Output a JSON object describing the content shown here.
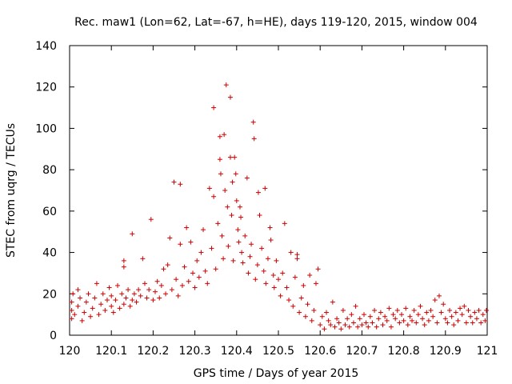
{
  "chart_data": {
    "type": "scatter",
    "title": "Rec. maw1 (Lon=62, Lat=-67, h=HE), days 119-120, 2015, window 004",
    "xlabel": "GPS time / Days of year 2015",
    "ylabel": "STEC from uqrg / TECUs",
    "xlim": [
      120,
      121
    ],
    "ylim": [
      0,
      140
    ],
    "xticks": [
      120,
      120.1,
      120.2,
      120.3,
      120.4,
      120.5,
      120.6,
      120.7,
      120.8,
      120.9,
      121
    ],
    "xtick_labels": [
      "120",
      "120.1",
      "120.2",
      "120.3",
      "120.4",
      "120.5",
      "120.6",
      "120.7",
      "120.8",
      "120.9",
      "121"
    ],
    "yticks": [
      0,
      20,
      40,
      60,
      80,
      100,
      120,
      140
    ],
    "ytick_labels": [
      "0",
      "20",
      "40",
      "60",
      "80",
      "100",
      "120",
      "140"
    ],
    "grid": false,
    "legend": false,
    "marker_color": "#cc0000",
    "points": [
      [
        120.005,
        8
      ],
      [
        120.005,
        12
      ],
      [
        120.005,
        16
      ],
      [
        120.008,
        20
      ],
      [
        120.012,
        10
      ],
      [
        120.02,
        14
      ],
      [
        120.02,
        22
      ],
      [
        120.025,
        18
      ],
      [
        120.03,
        7
      ],
      [
        120.035,
        11
      ],
      [
        120.04,
        16
      ],
      [
        120.045,
        20
      ],
      [
        120.05,
        9
      ],
      [
        120.055,
        13
      ],
      [
        120.06,
        18
      ],
      [
        120.065,
        25
      ],
      [
        120.07,
        10
      ],
      [
        120.075,
        15
      ],
      [
        120.08,
        20
      ],
      [
        120.085,
        12
      ],
      [
        120.09,
        17
      ],
      [
        120.095,
        23
      ],
      [
        120.1,
        14
      ],
      [
        120.1,
        19
      ],
      [
        120.105,
        11
      ],
      [
        120.11,
        17
      ],
      [
        120.115,
        24
      ],
      [
        120.12,
        13
      ],
      [
        120.125,
        20
      ],
      [
        120.13,
        15
      ],
      [
        120.13,
        33
      ],
      [
        120.13,
        36
      ],
      [
        120.135,
        18
      ],
      [
        120.14,
        22
      ],
      [
        120.145,
        14
      ],
      [
        120.15,
        17
      ],
      [
        120.15,
        49
      ],
      [
        120.155,
        20
      ],
      [
        120.16,
        16
      ],
      [
        120.165,
        22
      ],
      [
        120.17,
        19
      ],
      [
        120.175,
        37
      ],
      [
        120.18,
        25
      ],
      [
        120.185,
        18
      ],
      [
        120.19,
        22
      ],
      [
        120.195,
        56
      ],
      [
        120.2,
        17
      ],
      [
        120.205,
        21
      ],
      [
        120.21,
        26
      ],
      [
        120.215,
        18
      ],
      [
        120.22,
        24
      ],
      [
        120.225,
        32
      ],
      [
        120.23,
        20
      ],
      [
        120.235,
        34
      ],
      [
        120.24,
        47
      ],
      [
        120.245,
        22
      ],
      [
        120.25,
        74
      ],
      [
        120.255,
        27
      ],
      [
        120.26,
        19
      ],
      [
        120.265,
        73
      ],
      [
        120.265,
        44
      ],
      [
        120.27,
        24
      ],
      [
        120.275,
        33
      ],
      [
        120.28,
        52
      ],
      [
        120.285,
        26
      ],
      [
        120.29,
        45
      ],
      [
        120.295,
        30
      ],
      [
        120.3,
        23
      ],
      [
        120.305,
        36
      ],
      [
        120.31,
        28
      ],
      [
        120.315,
        40
      ],
      [
        120.32,
        51
      ],
      [
        120.325,
        31
      ],
      [
        120.33,
        25
      ],
      [
        120.335,
        71
      ],
      [
        120.34,
        42
      ],
      [
        120.345,
        67
      ],
      [
        120.345,
        110
      ],
      [
        120.35,
        32
      ],
      [
        120.355,
        54
      ],
      [
        120.36,
        96
      ],
      [
        120.36,
        85
      ],
      [
        120.362,
        78
      ],
      [
        120.365,
        48
      ],
      [
        120.368,
        37
      ],
      [
        120.37,
        97
      ],
      [
        120.372,
        70
      ],
      [
        120.375,
        121
      ],
      [
        120.378,
        62
      ],
      [
        120.38,
        43
      ],
      [
        120.385,
        115
      ],
      [
        120.385,
        86
      ],
      [
        120.388,
        58
      ],
      [
        120.39,
        74
      ],
      [
        120.392,
        36
      ],
      [
        120.395,
        86
      ],
      [
        120.398,
        78
      ],
      [
        120.4,
        65
      ],
      [
        120.403,
        51
      ],
      [
        120.405,
        45
      ],
      [
        120.408,
        62
      ],
      [
        120.41,
        57
      ],
      [
        120.412,
        40
      ],
      [
        120.415,
        35
      ],
      [
        120.42,
        48
      ],
      [
        120.425,
        76
      ],
      [
        120.428,
        30
      ],
      [
        120.432,
        38
      ],
      [
        120.435,
        44
      ],
      [
        120.44,
        103
      ],
      [
        120.442,
        95
      ],
      [
        120.445,
        27
      ],
      [
        120.45,
        34
      ],
      [
        120.452,
        69
      ],
      [
        120.455,
        58
      ],
      [
        120.46,
        42
      ],
      [
        120.465,
        31
      ],
      [
        120.468,
        71
      ],
      [
        120.47,
        25
      ],
      [
        120.475,
        37
      ],
      [
        120.48,
        52
      ],
      [
        120.482,
        46
      ],
      [
        120.488,
        29
      ],
      [
        120.49,
        23
      ],
      [
        120.495,
        36
      ],
      [
        120.5,
        27
      ],
      [
        120.505,
        19
      ],
      [
        120.51,
        30
      ],
      [
        120.515,
        54
      ],
      [
        120.52,
        23
      ],
      [
        120.525,
        17
      ],
      [
        120.53,
        40
      ],
      [
        120.535,
        14
      ],
      [
        120.54,
        28
      ],
      [
        120.545,
        37
      ],
      [
        120.545,
        39
      ],
      [
        120.55,
        11
      ],
      [
        120.555,
        18
      ],
      [
        120.56,
        24
      ],
      [
        120.565,
        9
      ],
      [
        120.57,
        15
      ],
      [
        120.575,
        29
      ],
      [
        120.58,
        7
      ],
      [
        120.585,
        12
      ],
      [
        120.59,
        25
      ],
      [
        120.595,
        32
      ],
      [
        120.6,
        5
      ],
      [
        120.605,
        9
      ],
      [
        120.61,
        3
      ],
      [
        120.615,
        11
      ],
      [
        120.62,
        7
      ],
      [
        120.625,
        5
      ],
      [
        120.63,
        16
      ],
      [
        120.635,
        4
      ],
      [
        120.64,
        8
      ],
      [
        120.645,
        6
      ],
      [
        120.65,
        3
      ],
      [
        120.655,
        12
      ],
      [
        120.66,
        5
      ],
      [
        120.665,
        8
      ],
      [
        120.67,
        4
      ],
      [
        120.675,
        10
      ],
      [
        120.68,
        6
      ],
      [
        120.685,
        14
      ],
      [
        120.69,
        4
      ],
      [
        120.695,
        8
      ],
      [
        120.7,
        5
      ],
      [
        120.705,
        10
      ],
      [
        120.71,
        6
      ],
      [
        120.715,
        4
      ],
      [
        120.72,
        9
      ],
      [
        120.725,
        6
      ],
      [
        120.73,
        12
      ],
      [
        120.735,
        4
      ],
      [
        120.74,
        8
      ],
      [
        120.745,
        11
      ],
      [
        120.75,
        5
      ],
      [
        120.755,
        9
      ],
      [
        120.76,
        7
      ],
      [
        120.765,
        13
      ],
      [
        120.77,
        4
      ],
      [
        120.775,
        10
      ],
      [
        120.78,
        8
      ],
      [
        120.785,
        12
      ],
      [
        120.79,
        6
      ],
      [
        120.795,
        10
      ],
      [
        120.8,
        7
      ],
      [
        120.805,
        13
      ],
      [
        120.81,
        5
      ],
      [
        120.815,
        9
      ],
      [
        120.82,
        7
      ],
      [
        120.825,
        12
      ],
      [
        120.83,
        6
      ],
      [
        120.835,
        10
      ],
      [
        120.84,
        14
      ],
      [
        120.845,
        8
      ],
      [
        120.85,
        5
      ],
      [
        120.855,
        11
      ],
      [
        120.86,
        7
      ],
      [
        120.865,
        12
      ],
      [
        120.87,
        9
      ],
      [
        120.875,
        17
      ],
      [
        120.88,
        6
      ],
      [
        120.885,
        19
      ],
      [
        120.89,
        11
      ],
      [
        120.895,
        15
      ],
      [
        120.9,
        8
      ],
      [
        120.905,
        6
      ],
      [
        120.91,
        12
      ],
      [
        120.915,
        9
      ],
      [
        120.92,
        5
      ],
      [
        120.925,
        11
      ],
      [
        120.93,
        7
      ],
      [
        120.935,
        13
      ],
      [
        120.94,
        10
      ],
      [
        120.945,
        14
      ],
      [
        120.95,
        6
      ],
      [
        120.955,
        12
      ],
      [
        120.96,
        9
      ],
      [
        120.965,
        6
      ],
      [
        120.97,
        11
      ],
      [
        120.975,
        8
      ],
      [
        120.98,
        12
      ],
      [
        120.985,
        6
      ],
      [
        120.99,
        10
      ],
      [
        120.995,
        7
      ],
      [
        120.998,
        12
      ]
    ]
  }
}
